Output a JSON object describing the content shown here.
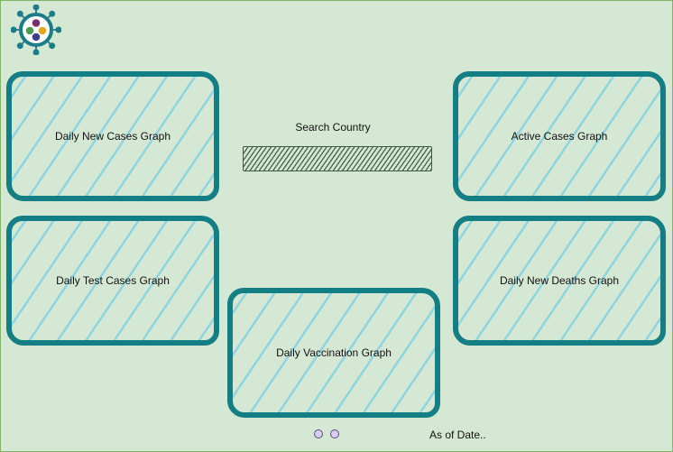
{
  "app": {
    "logo_icon": "virus-icon",
    "logo_colors": [
      "#1c7c87",
      "#7b2d6f",
      "#e9a520",
      "#4b9b54",
      "#3f3d8f"
    ]
  },
  "cards": {
    "daily_new_cases": {
      "label": "Daily New Cases Graph"
    },
    "active_cases": {
      "label": "Active Cases Graph"
    },
    "daily_test_cases": {
      "label": "Daily Test Cases Graph"
    },
    "daily_new_deaths": {
      "label": "Daily New Deaths Graph"
    },
    "daily_vaccination": {
      "label": "Daily Vaccination Graph"
    }
  },
  "search": {
    "label": "Search Country",
    "value": ""
  },
  "footer": {
    "page_dots": 2,
    "as_of": "As of Date.."
  },
  "colors": {
    "background": "#d5e8d4",
    "background_border": "#82b366",
    "card_border": "#137f84",
    "card_hatch": "#58c4e8",
    "search_hatch": "#4e6a4e",
    "dot_fill": "#d6cdf0",
    "dot_border": "#5a4d7e"
  }
}
